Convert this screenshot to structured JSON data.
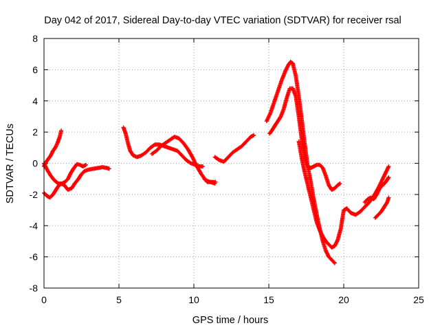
{
  "chart_data": {
    "type": "scatter",
    "title": "Day 042 of 2017, Sidereal Day-to-day VTEC variation (SDTVAR) for receiver rsal",
    "xlabel": "GPS time / hours",
    "ylabel": "SDTVAR / TECUs",
    "xlim": [
      0,
      25
    ],
    "ylim": [
      -8,
      8
    ],
    "xticks": [
      0,
      5,
      10,
      15,
      20,
      25
    ],
    "yticks": [
      -8,
      -6,
      -4,
      -2,
      0,
      2,
      4,
      6,
      8
    ],
    "grid": true,
    "marker": "plus",
    "color": "#ff0000",
    "series": [
      {
        "values": [
          [
            0.0,
            -0.2
          ],
          [
            0.15,
            0.1
          ],
          [
            0.3,
            0.3
          ],
          [
            0.45,
            0.5
          ],
          [
            0.6,
            0.8
          ],
          [
            0.75,
            1.0
          ],
          [
            0.9,
            1.3
          ],
          [
            1.05,
            1.7
          ],
          [
            1.15,
            2.1
          ]
        ]
      },
      {
        "values": [
          [
            0.0,
            0.0
          ],
          [
            0.2,
            -0.4
          ],
          [
            0.45,
            -0.8
          ],
          [
            0.7,
            -1.1
          ],
          [
            0.95,
            -1.3
          ],
          [
            1.15,
            -1.3
          ],
          [
            1.35,
            -1.4
          ],
          [
            1.6,
            -1.7
          ],
          [
            1.85,
            -1.6
          ],
          [
            2.05,
            -1.3
          ],
          [
            2.3,
            -1.0
          ],
          [
            2.5,
            -0.7
          ],
          [
            2.7,
            -0.5
          ],
          [
            3.0,
            -0.4
          ],
          [
            3.3,
            -0.35
          ],
          [
            3.6,
            -0.3
          ],
          [
            3.9,
            -0.25
          ],
          [
            4.2,
            -0.3
          ],
          [
            4.35,
            -0.35
          ]
        ]
      },
      {
        "values": [
          [
            0.0,
            -1.9
          ],
          [
            0.2,
            -2.1
          ],
          [
            0.4,
            -2.2
          ],
          [
            0.6,
            -2.0
          ],
          [
            0.8,
            -1.7
          ],
          [
            1.0,
            -1.4
          ],
          [
            1.2,
            -1.3
          ],
          [
            1.4,
            -1.2
          ],
          [
            1.6,
            -1.0
          ],
          [
            1.8,
            -0.6
          ],
          [
            2.0,
            -0.3
          ],
          [
            2.2,
            -0.05
          ],
          [
            2.4,
            -0.1
          ],
          [
            2.6,
            -0.2
          ],
          [
            2.8,
            -0.1
          ]
        ]
      },
      {
        "values": [
          [
            5.3,
            2.3
          ],
          [
            5.45,
            1.9
          ],
          [
            5.6,
            1.3
          ],
          [
            5.75,
            0.8
          ],
          [
            5.95,
            0.5
          ],
          [
            6.2,
            0.4
          ],
          [
            6.5,
            0.5
          ],
          [
            6.8,
            0.7
          ],
          [
            7.1,
            1.0
          ],
          [
            7.4,
            1.2
          ],
          [
            7.7,
            1.2
          ],
          [
            8.0,
            1.1
          ],
          [
            8.3,
            1.0
          ],
          [
            8.6,
            0.9
          ],
          [
            8.9,
            0.8
          ],
          [
            9.2,
            0.5
          ],
          [
            9.5,
            0.2
          ],
          [
            9.8,
            0.0
          ],
          [
            10.1,
            -0.1
          ],
          [
            10.4,
            -0.2
          ],
          [
            10.6,
            -0.2
          ]
        ]
      },
      {
        "values": [
          [
            7.2,
            0.6
          ],
          [
            7.5,
            0.8
          ],
          [
            7.8,
            1.1
          ],
          [
            8.1,
            1.3
          ],
          [
            8.4,
            1.5
          ],
          [
            8.7,
            1.7
          ],
          [
            9.0,
            1.6
          ],
          [
            9.3,
            1.3
          ],
          [
            9.6,
            0.9
          ],
          [
            9.9,
            0.4
          ],
          [
            10.2,
            -0.2
          ],
          [
            10.5,
            -0.7
          ],
          [
            10.8,
            -1.1
          ],
          [
            11.1,
            -1.2
          ],
          [
            11.4,
            -1.3
          ]
        ]
      },
      {
        "values": [
          [
            10.7,
            -1.0
          ],
          [
            10.9,
            -1.2
          ],
          [
            11.2,
            -1.2
          ],
          [
            11.45,
            -1.2
          ]
        ]
      },
      {
        "values": [
          [
            11.4,
            0.4
          ],
          [
            11.7,
            0.2
          ],
          [
            12.0,
            0.1
          ],
          [
            12.3,
            0.4
          ],
          [
            12.6,
            0.7
          ],
          [
            12.9,
            0.9
          ],
          [
            13.2,
            1.1
          ],
          [
            13.5,
            1.4
          ],
          [
            13.8,
            1.7
          ],
          [
            14.0,
            1.8
          ]
        ]
      },
      {
        "values": [
          [
            15.05,
            1.9
          ],
          [
            15.2,
            2.1
          ],
          [
            15.4,
            2.4
          ],
          [
            15.6,
            2.7
          ],
          [
            15.8,
            3.0
          ],
          [
            16.0,
            3.5
          ],
          [
            16.2,
            4.2
          ],
          [
            16.4,
            4.8
          ],
          [
            16.6,
            4.8
          ],
          [
            16.8,
            4.3
          ],
          [
            17.0,
            3.0
          ],
          [
            17.2,
            1.5
          ],
          [
            17.4,
            0.3
          ],
          [
            17.6,
            -0.2
          ],
          [
            17.8,
            -0.3
          ],
          [
            18.0,
            -0.2
          ],
          [
            18.2,
            -0.1
          ],
          [
            18.4,
            -0.1
          ],
          [
            18.6,
            -0.3
          ],
          [
            18.8,
            -0.8
          ],
          [
            19.0,
            -1.4
          ],
          [
            19.2,
            -1.7
          ],
          [
            19.4,
            -1.6
          ],
          [
            19.6,
            -1.4
          ],
          [
            19.75,
            -1.3
          ]
        ]
      },
      {
        "values": [
          [
            14.85,
            2.7
          ],
          [
            15.1,
            3.2
          ],
          [
            15.35,
            3.9
          ],
          [
            15.6,
            4.6
          ],
          [
            15.85,
            5.3
          ],
          [
            16.1,
            5.9
          ],
          [
            16.3,
            6.3
          ],
          [
            16.45,
            6.5
          ],
          [
            16.6,
            6.4
          ],
          [
            16.8,
            5.6
          ],
          [
            17.0,
            4.3
          ],
          [
            17.2,
            2.8
          ],
          [
            17.4,
            1.2
          ],
          [
            17.6,
            -0.2
          ],
          [
            17.8,
            -1.2
          ],
          [
            18.0,
            -2.3
          ],
          [
            18.2,
            -3.3
          ],
          [
            18.4,
            -4.2
          ],
          [
            18.6,
            -5.0
          ],
          [
            18.8,
            -5.6
          ],
          [
            19.0,
            -6.0
          ],
          [
            19.2,
            -6.2
          ],
          [
            19.4,
            -6.4
          ]
        ]
      },
      {
        "values": [
          [
            17.0,
            1.4
          ],
          [
            17.2,
            0.3
          ],
          [
            17.4,
            -0.6
          ],
          [
            17.6,
            -1.4
          ],
          [
            17.8,
            -2.2
          ],
          [
            18.0,
            -3.0
          ],
          [
            18.2,
            -3.8
          ],
          [
            18.4,
            -4.3
          ],
          [
            18.6,
            -4.7
          ],
          [
            18.8,
            -5.0
          ],
          [
            19.0,
            -5.2
          ],
          [
            19.2,
            -5.4
          ],
          [
            19.4,
            -5.3
          ],
          [
            19.6,
            -4.9
          ],
          [
            19.8,
            -4.2
          ],
          [
            20.0,
            -3.0
          ],
          [
            20.2,
            -2.9
          ]
        ]
      },
      {
        "values": [
          [
            20.2,
            -2.9
          ],
          [
            20.5,
            -3.2
          ],
          [
            20.8,
            -3.3
          ],
          [
            21.1,
            -3.1
          ],
          [
            21.4,
            -2.8
          ],
          [
            21.7,
            -2.5
          ],
          [
            22.0,
            -2.1
          ],
          [
            22.3,
            -1.6
          ],
          [
            22.6,
            -1.0
          ],
          [
            22.8,
            -0.6
          ],
          [
            23.0,
            -0.2
          ]
        ]
      },
      {
        "values": [
          [
            21.4,
            -2.5
          ],
          [
            21.6,
            -2.3
          ],
          [
            21.8,
            -2.2
          ],
          [
            22.0,
            -2.3
          ],
          [
            22.2,
            -2.0
          ],
          [
            22.4,
            -1.6
          ],
          [
            22.6,
            -1.4
          ],
          [
            22.8,
            -1.2
          ],
          [
            23.0,
            -0.9
          ]
        ]
      },
      {
        "values": [
          [
            22.1,
            -3.5
          ],
          [
            22.3,
            -3.3
          ],
          [
            22.5,
            -3.1
          ],
          [
            22.7,
            -2.8
          ],
          [
            22.9,
            -2.5
          ],
          [
            23.0,
            -2.2
          ]
        ]
      }
    ]
  }
}
